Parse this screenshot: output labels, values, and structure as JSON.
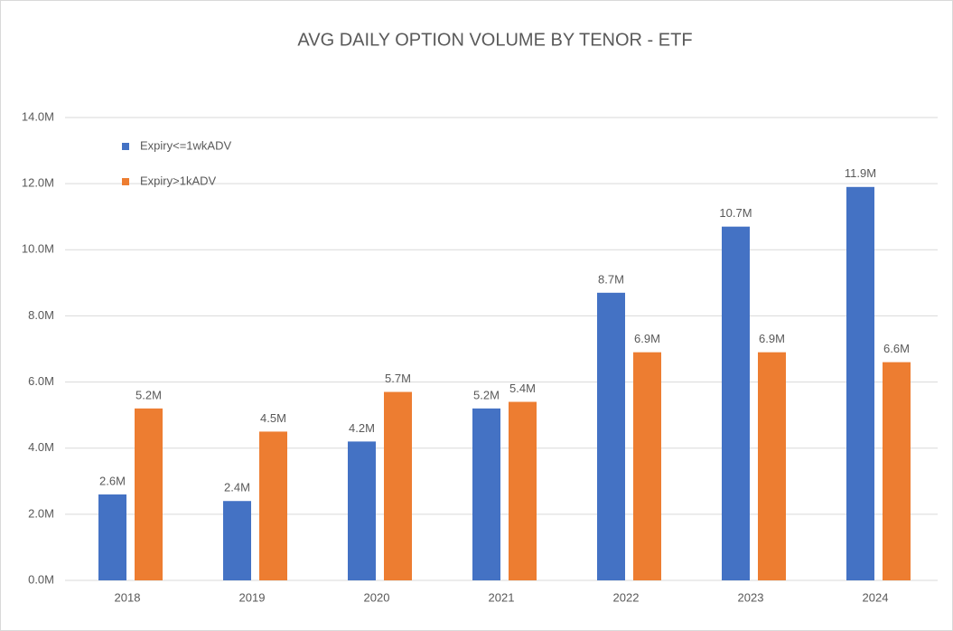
{
  "chart_data": {
    "type": "bar",
    "title": "AVG DAILY OPTION VOLUME BY TENOR - ETF",
    "categories": [
      "2018",
      "2019",
      "2020",
      "2021",
      "2022",
      "2023",
      "2024"
    ],
    "series": [
      {
        "name": "Expiry<=1wkADV",
        "color": "#4472c4",
        "values": [
          2.6,
          2.4,
          4.2,
          5.2,
          8.7,
          10.7,
          11.9
        ],
        "value_labels": [
          "2.6M",
          "2.4M",
          "4.2M",
          "5.2M",
          "8.7M",
          "10.7M",
          "11.9M"
        ]
      },
      {
        "name": "Expiry>1kADV",
        "color": "#ed7d31",
        "values": [
          5.2,
          4.5,
          5.7,
          5.4,
          6.9,
          6.9,
          6.6
        ],
        "value_labels": [
          "5.2M",
          "4.5M",
          "5.7M",
          "5.4M",
          "6.9M",
          "6.9M",
          "6.6M"
        ]
      }
    ],
    "ylim": [
      0,
      14
    ],
    "yticks": [
      {
        "value": 0,
        "label": "0.0M"
      },
      {
        "value": 2,
        "label": "2.0M"
      },
      {
        "value": 4,
        "label": "4.0M"
      },
      {
        "value": 6,
        "label": "6.0M"
      },
      {
        "value": 8,
        "label": "8.0M"
      },
      {
        "value": 10,
        "label": "10.0M"
      },
      {
        "value": 12,
        "label": "12.0M"
      },
      {
        "value": 14,
        "label": "14.0M"
      }
    ],
    "grid": true,
    "legend": "upper left"
  }
}
